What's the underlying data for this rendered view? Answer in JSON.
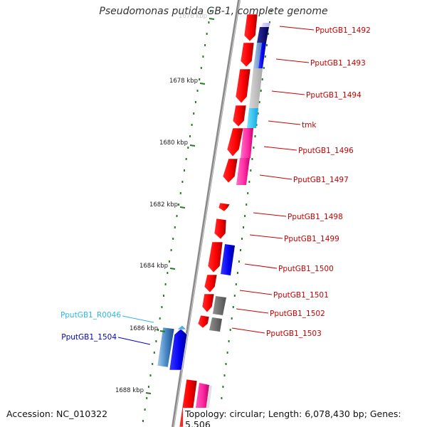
{
  "title": "Pseudomonas putida GB-1, complete genome",
  "accession": "Accession: NC_010322",
  "topology": "Topology: circular; Length: 6,078,430 bp; Genes: 5,506",
  "colors": {
    "cds": "#ff0000",
    "rrna": "#30c8f0",
    "backbone": "#888888",
    "tick": "#2a7a2a",
    "label_red": "#cc0000",
    "label_blue": "#0000cc",
    "label_cyan": "#30b8e0"
  },
  "ticks": [
    {
      "label": "1676 kbp"
    },
    {
      "label": "1678 kbp"
    },
    {
      "label": "1680 kbp"
    },
    {
      "label": "1682 kbp"
    },
    {
      "label": "1684 kbp"
    },
    {
      "label": "1686 kbp"
    },
    {
      "label": "1688 kbp"
    }
  ],
  "genes_right": [
    {
      "label": "PputGB1_1492"
    },
    {
      "label": "PputGB1_1493"
    },
    {
      "label": "PputGB1_1494"
    },
    {
      "label": "tmk"
    },
    {
      "label": "PputGB1_1496"
    },
    {
      "label": "PputGB1_1497"
    },
    {
      "label": "PputGB1_1498"
    },
    {
      "label": "PputGB1_1499"
    },
    {
      "label": "PputGB1_1500"
    },
    {
      "label": "PputGB1_1501"
    },
    {
      "label": "PputGB1_1502"
    },
    {
      "label": "PputGB1_1503"
    }
  ],
  "genes_left": [
    {
      "label": "PputGB1_R0046",
      "color": "#30b8e0"
    },
    {
      "label": "PputGB1_1504",
      "color": "#0000cc"
    }
  ]
}
